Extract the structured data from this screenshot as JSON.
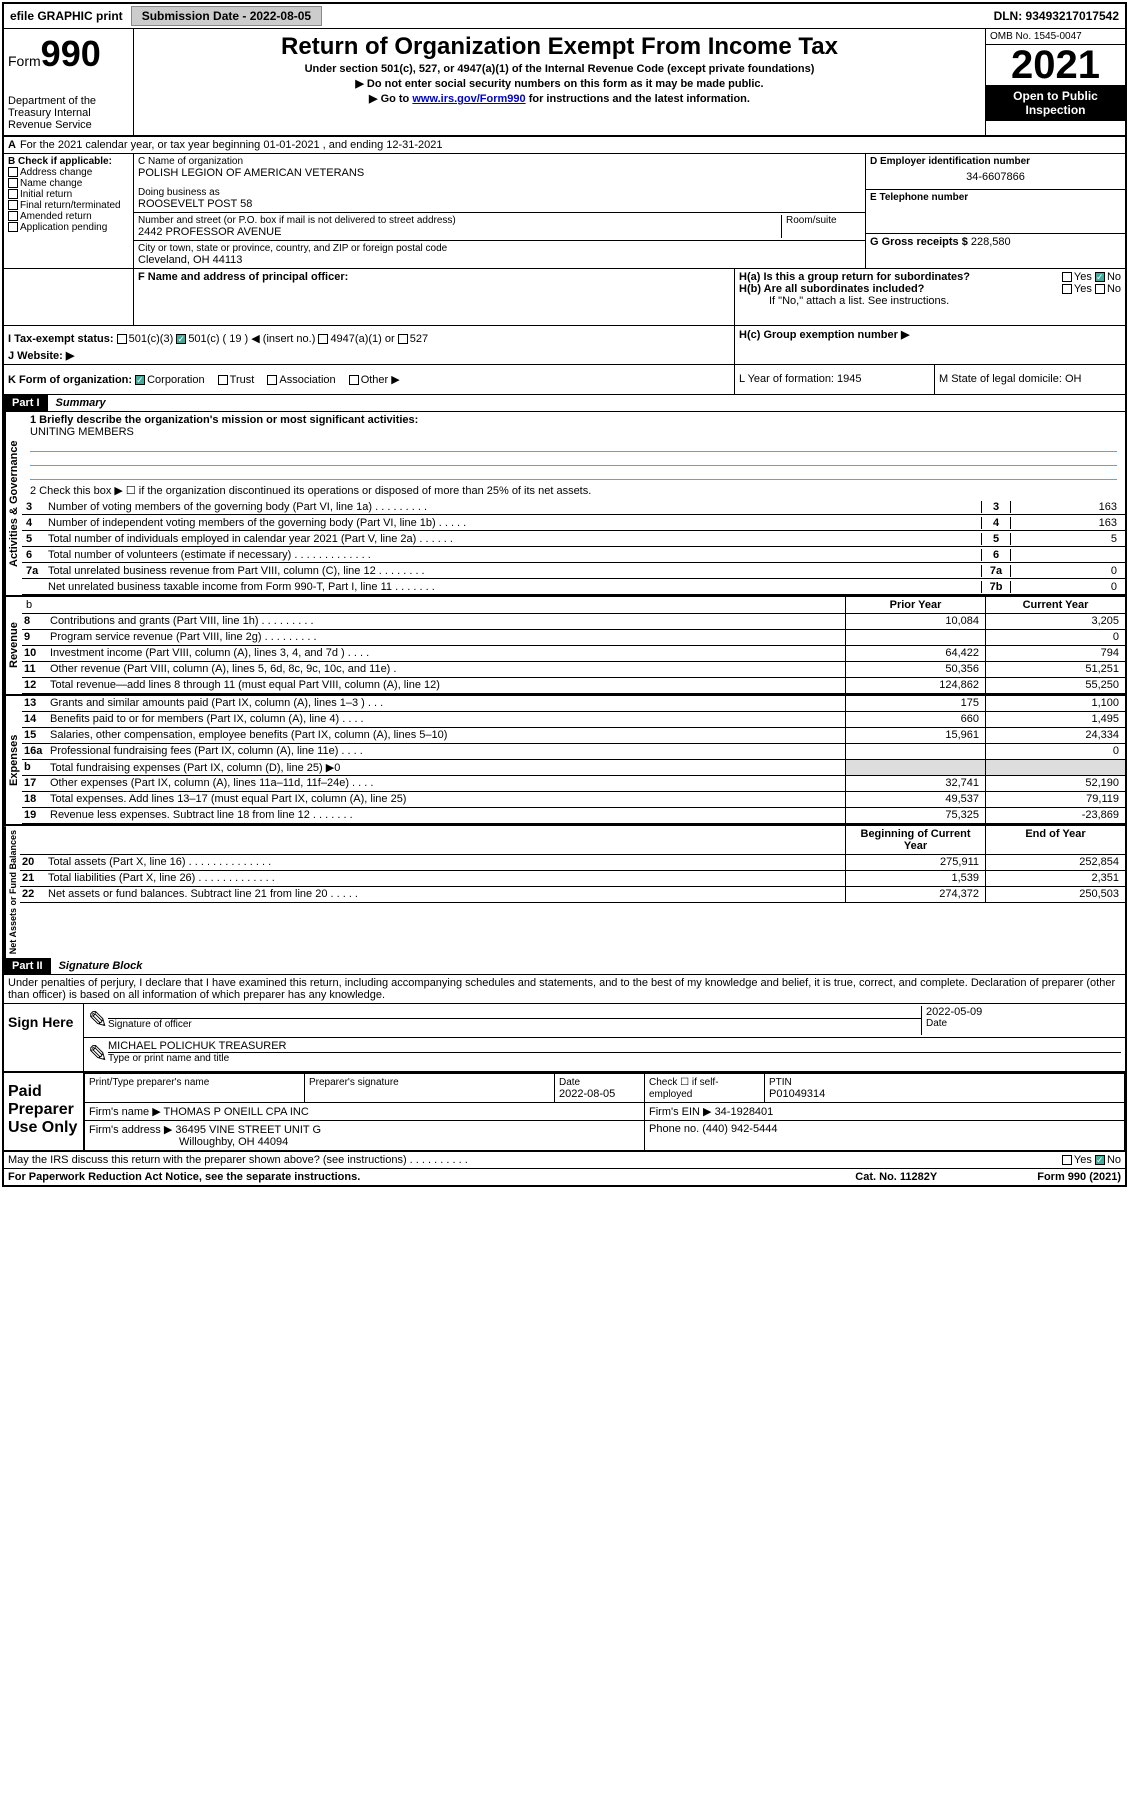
{
  "topbar": {
    "efile": "efile GRAPHIC print",
    "submission_label": "Submission Date - 2022-08-05",
    "dln": "DLN: 93493217017542"
  },
  "header": {
    "form_label": "Form",
    "form_number": "990",
    "dept": "Department of the Treasury Internal Revenue Service",
    "title": "Return of Organization Exempt From Income Tax",
    "sub1": "Under section 501(c), 527, or 4947(a)(1) of the Internal Revenue Code (except private foundations)",
    "sub2": "▶ Do not enter social security numbers on this form as it may be made public.",
    "sub3_pre": "▶ Go to ",
    "sub3_link": "www.irs.gov/Form990",
    "sub3_post": " for instructions and the latest information.",
    "omb": "OMB No. 1545-0047",
    "year": "2021",
    "inspection": "Open to Public Inspection"
  },
  "line_a": "For the 2021 calendar year, or tax year beginning 01-01-2021    , and ending 12-31-2021",
  "section_b": {
    "label": "B Check if applicable:",
    "items": [
      "Address change",
      "Name change",
      "Initial return",
      "Final return/terminated",
      "Amended return",
      "Application pending"
    ]
  },
  "section_c": {
    "name_label": "C Name of organization",
    "name": "POLISH LEGION OF AMERICAN VETERANS",
    "dba_label": "Doing business as",
    "dba": "ROOSEVELT POST 58",
    "addr_label": "Number and street (or P.O. box if mail is not delivered to street address)",
    "room_label": "Room/suite",
    "addr": "2442 PROFESSOR AVENUE",
    "city_label": "City or town, state or province, country, and ZIP or foreign postal code",
    "city": "Cleveland, OH  44113"
  },
  "section_d": {
    "label": "D Employer identification number",
    "value": "34-6607866"
  },
  "section_e": {
    "label": "E Telephone number",
    "value": ""
  },
  "section_g": {
    "label": "G Gross receipts $",
    "value": "228,580"
  },
  "section_f": {
    "label": "F  Name and address of principal officer:"
  },
  "section_h": {
    "ha": "H(a)  Is this a group return for subordinates?",
    "hb": "H(b)  Are all subordinates included?",
    "hb_note": "If \"No,\" attach a list. See instructions.",
    "hc": "H(c)  Group exemption number ▶",
    "yes": "Yes",
    "no": "No"
  },
  "section_i": {
    "label": "I   Tax-exempt status:",
    "opt1": "501(c)(3)",
    "opt2": "501(c) ( 19 ) ◀ (insert no.)",
    "opt3": "4947(a)(1) or",
    "opt4": "527"
  },
  "section_j": {
    "label": "J   Website: ▶"
  },
  "section_k": {
    "label": "K Form of organization:",
    "opts": [
      "Corporation",
      "Trust",
      "Association",
      "Other ▶"
    ]
  },
  "section_l": {
    "label": "L Year of formation: 1945"
  },
  "section_m": {
    "label": "M State of legal domicile: OH"
  },
  "part1": {
    "header": "Part I",
    "title": "Summary",
    "line1_label": "1  Briefly describe the organization's mission or most significant activities:",
    "line1_value": "UNITING MEMBERS",
    "line2": "2    Check this box ▶ ☐  if the organization discontinued its operations or disposed of more than 25% of its net assets.",
    "governance": "Activities & Governance",
    "revenue": "Revenue",
    "expenses": "Expenses",
    "netassets": "Net Assets or Fund Balances",
    "lines_gov": [
      {
        "n": "3",
        "t": "Number of voting members of the governing body (Part VI, line 1a)  .   .   .   .   .   .   .   .   .",
        "b": "3",
        "v": "163"
      },
      {
        "n": "4",
        "t": "Number of independent voting members of the governing body (Part VI, line 1b)  .   .   .   .   .",
        "b": "4",
        "v": "163"
      },
      {
        "n": "5",
        "t": "Total number of individuals employed in calendar year 2021 (Part V, line 2a)  .   .   .   .   .   .",
        "b": "5",
        "v": "5"
      },
      {
        "n": "6",
        "t": "Total number of volunteers (estimate if necessary)  .   .   .   .   .   .   .   .   .   .   .   .   .",
        "b": "6",
        "v": ""
      },
      {
        "n": "7a",
        "t": "Total unrelated business revenue from Part VIII, column (C), line 12  .   .   .   .   .   .   .   .",
        "b": "7a",
        "v": "0"
      },
      {
        "n": "",
        "t": "Net unrelated business taxable income from Form 990-T, Part I, line 11  .   .   .   .   .   .   .",
        "b": "7b",
        "v": "0"
      }
    ],
    "col_headers": {
      "prior": "Prior Year",
      "current": "Current Year"
    },
    "lines_rev": [
      {
        "n": "8",
        "t": "Contributions and grants (Part VIII, line 1h)   .   .   .   .   .   .   .   .   .",
        "c1": "10,084",
        "c2": "3,205"
      },
      {
        "n": "9",
        "t": "Program service revenue (Part VIII, line 2g)   .   .   .   .   .   .   .   .   .",
        "c1": "",
        "c2": "0"
      },
      {
        "n": "10",
        "t": "Investment income (Part VIII, column (A), lines 3, 4, and 7d )   .   .   .   .",
        "c1": "64,422",
        "c2": "794"
      },
      {
        "n": "11",
        "t": "Other revenue (Part VIII, column (A), lines 5, 6d, 8c, 9c, 10c, and 11e)   .",
        "c1": "50,356",
        "c2": "51,251"
      },
      {
        "n": "12",
        "t": "Total revenue—add lines 8 through 11 (must equal Part VIII, column (A), line 12)",
        "c1": "124,862",
        "c2": "55,250"
      }
    ],
    "lines_exp": [
      {
        "n": "13",
        "t": "Grants and similar amounts paid (Part IX, column (A), lines 1–3 )   .   .   .",
        "c1": "175",
        "c2": "1,100"
      },
      {
        "n": "14",
        "t": "Benefits paid to or for members (Part IX, column (A), line 4)   .   .   .   .",
        "c1": "660",
        "c2": "1,495"
      },
      {
        "n": "15",
        "t": "Salaries, other compensation, employee benefits (Part IX, column (A), lines 5–10)",
        "c1": "15,961",
        "c2": "24,334"
      },
      {
        "n": "16a",
        "t": "Professional fundraising fees (Part IX, column (A), line 11e)   .   .   .   .",
        "c1": "",
        "c2": "0"
      },
      {
        "n": "b",
        "t": "Total fundraising expenses (Part IX, column (D), line 25) ▶0",
        "c1": "grey",
        "c2": "grey"
      },
      {
        "n": "17",
        "t": "Other expenses (Part IX, column (A), lines 11a–11d, 11f–24e)   .   .   .   .",
        "c1": "32,741",
        "c2": "52,190"
      },
      {
        "n": "18",
        "t": "Total expenses. Add lines 13–17 (must equal Part IX, column (A), line 25)",
        "c1": "49,537",
        "c2": "79,119"
      },
      {
        "n": "19",
        "t": "Revenue less expenses. Subtract line 18 from line 12   .   .   .   .   .   .   .",
        "c1": "75,325",
        "c2": "-23,869"
      }
    ],
    "col_headers2": {
      "begin": "Beginning of Current Year",
      "end": "End of Year"
    },
    "lines_net": [
      {
        "n": "20",
        "t": "Total assets (Part X, line 16)   .   .   .   .   .   .   .   .   .   .   .   .   .   .",
        "c1": "275,911",
        "c2": "252,854"
      },
      {
        "n": "21",
        "t": "Total liabilities (Part X, line 26)   .   .   .   .   .   .   .   .   .   .   .   .   .",
        "c1": "1,539",
        "c2": "2,351"
      },
      {
        "n": "22",
        "t": "Net assets or fund balances. Subtract line 21 from line 20   .   .   .   .   .",
        "c1": "274,372",
        "c2": "250,503"
      }
    ]
  },
  "part2": {
    "header": "Part II",
    "title": "Signature Block",
    "declaration": "Under penalties of perjury, I declare that I have examined this return, including accompanying schedules and statements, and to the best of my knowledge and belief, it is true, correct, and complete. Declaration of preparer (other than officer) is based on all information of which preparer has any knowledge.",
    "sign_here": "Sign Here",
    "sig_officer": "Signature of officer",
    "date": "Date",
    "date_val": "2022-05-09",
    "officer_name": "MICHAEL POLICHUK  TREASURER",
    "type_name": "Type or print name and title",
    "paid": "Paid Preparer Use Only",
    "prep_name_label": "Print/Type preparer's name",
    "prep_sig_label": "Preparer's signature",
    "prep_date_label": "Date",
    "prep_date": "2022-08-05",
    "check_label": "Check ☐ if self-employed",
    "ptin_label": "PTIN",
    "ptin": "P01049314",
    "firm_name_label": "Firm's name    ▶",
    "firm_name": "THOMAS P ONEILL CPA INC",
    "firm_ein_label": "Firm's EIN ▶",
    "firm_ein": "34-1928401",
    "firm_addr_label": "Firm's address ▶",
    "firm_addr1": "36495 VINE STREET UNIT G",
    "firm_addr2": "Willoughby, OH  44094",
    "phone_label": "Phone no.",
    "phone": "(440) 942-5444",
    "discuss": "May the IRS discuss this return with the preparer shown above? (see instructions)   .   .   .   .   .   .   .   .   .   .",
    "yes": "Yes",
    "no": "No"
  },
  "footer": {
    "left": "For Paperwork Reduction Act Notice, see the separate instructions.",
    "mid": "Cat. No. 11282Y",
    "right": "Form 990 (2021)"
  }
}
